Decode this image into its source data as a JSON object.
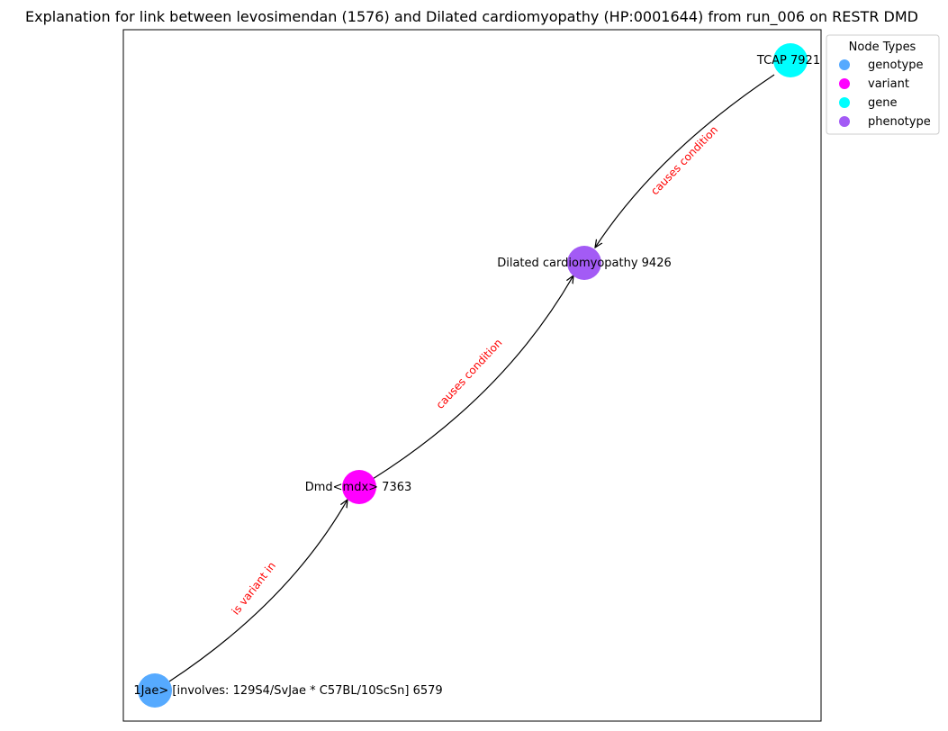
{
  "title": "Explanation for link between levosimendan (1576) and Dilated cardiomyopathy (HP:0001644) from run_006 on RESTR DMD",
  "nodes": [
    {
      "id": "genotype",
      "label": "1Jae> [involves: 129S4/SvJae * C57BL/10ScSn] 6579",
      "type": "genotype"
    },
    {
      "id": "variant",
      "label": "Dmd<mdx> 7363",
      "type": "variant"
    },
    {
      "id": "phenotype",
      "label": "Dilated cardiomyopathy 9426",
      "type": "phenotype"
    },
    {
      "id": "gene",
      "label": "TCAP 7921",
      "type": "gene"
    }
  ],
  "edges": [
    {
      "from": "genotype",
      "to": "variant",
      "label": "is variant in"
    },
    {
      "from": "variant",
      "to": "phenotype",
      "label": "causes condition"
    },
    {
      "from": "gene",
      "to": "phenotype",
      "label": "causes condition"
    }
  ],
  "legend": {
    "title": "Node Types",
    "items": [
      {
        "label": "genotype",
        "color": "#56aaff"
      },
      {
        "label": "variant",
        "color": "#ff00ff"
      },
      {
        "label": "gene",
        "color": "#00ffff"
      },
      {
        "label": "phenotype",
        "color": "#a35bf5"
      }
    ]
  }
}
